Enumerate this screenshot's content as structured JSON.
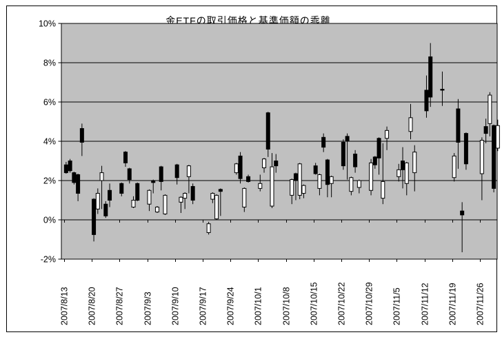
{
  "chart_data": {
    "type": "candlestick",
    "title": "金ETFの取引価格と基準価額の乖離",
    "ylabel": "",
    "xlabel": "",
    "ylim": [
      -2,
      10
    ],
    "y_tick_step": 2,
    "y_ticks": [
      10,
      8,
      6,
      4,
      2,
      0,
      -2
    ],
    "y_tick_labels": [
      "10%",
      "8%",
      "6%",
      "4%",
      "2%",
      "0%",
      "-2%"
    ],
    "x_tick_labels": [
      "2007/8/13",
      "2007/8/20",
      "2007/8/27",
      "2007/9/3",
      "2007/9/10",
      "2007/9/17",
      "2007/9/24",
      "2007/10/1",
      "2007/10/8",
      "2007/10/15",
      "2007/10/22",
      "2007/10/29",
      "2007/11/5",
      "2007/11/12",
      "2007/11/19",
      "2007/11/26"
    ],
    "grid": true,
    "legend": "none",
    "plot_bg_color": "#c0c0c0",
    "up_color": "#ffffff",
    "down_color": "#000000",
    "line_color": "#000000",
    "candles": [
      {
        "date": "2007/8/13",
        "o": 2.8,
        "h": 2.95,
        "l": 2.35,
        "c": 2.4
      },
      {
        "date": "2007/8/14",
        "o": 3.0,
        "h": 3.1,
        "l": 2.4,
        "c": 2.5
      },
      {
        "date": "2007/8/15",
        "o": 2.4,
        "h": 2.45,
        "l": 1.8,
        "c": 1.9
      },
      {
        "date": "2007/8/16",
        "o": 2.3,
        "h": 2.35,
        "l": 0.95,
        "c": 1.35
      },
      {
        "date": "2007/8/17",
        "o": 4.65,
        "h": 4.9,
        "l": 3.25,
        "c": 3.95
      },
      {
        "date": "2007/8/20",
        "o": 1.05,
        "h": 1.1,
        "l": -1.1,
        "c": -0.75
      },
      {
        "date": "2007/8/21",
        "o": 0.55,
        "h": 1.6,
        "l": 0.3,
        "c": 1.35
      },
      {
        "date": "2007/8/22",
        "o": 2.0,
        "h": 2.75,
        "l": 0.55,
        "c": 2.4
      },
      {
        "date": "2007/8/23",
        "o": 0.8,
        "h": 0.95,
        "l": 0.1,
        "c": 0.2
      },
      {
        "date": "2007/8/24",
        "o": 1.5,
        "h": 1.85,
        "l": 0.65,
        "c": 1.0
      },
      {
        "date": "2007/8/27",
        "o": 1.85,
        "h": 1.9,
        "l": 1.2,
        "c": 1.35
      },
      {
        "date": "2007/8/28",
        "o": 3.45,
        "h": 3.5,
        "l": 2.7,
        "c": 2.9
      },
      {
        "date": "2007/8/29",
        "o": 2.6,
        "h": 2.65,
        "l": 1.85,
        "c": 2.05
      },
      {
        "date": "2007/8/30",
        "o": 0.65,
        "h": 1.2,
        "l": 0.6,
        "c": 1.0
      },
      {
        "date": "2007/8/31",
        "o": 1.85,
        "h": 1.9,
        "l": 0.95,
        "c": 1.0
      },
      {
        "date": "2007/9/3",
        "o": 0.8,
        "h": 1.55,
        "l": 0.45,
        "c": 1.5
      },
      {
        "date": "2007/9/4",
        "o": 2.0,
        "h": 2.05,
        "l": 1.35,
        "c": 1.9
      },
      {
        "date": "2007/9/5",
        "o": 0.4,
        "h": 0.7,
        "l": 0.35,
        "c": 0.65
      },
      {
        "date": "2007/9/6",
        "o": 2.7,
        "h": 2.75,
        "l": 1.5,
        "c": 1.95
      },
      {
        "date": "2007/9/7",
        "o": 0.3,
        "h": 1.3,
        "l": 0.25,
        "c": 1.25
      },
      {
        "date": "2007/9/10",
        "o": 2.8,
        "h": 2.85,
        "l": 1.8,
        "c": 2.15
      },
      {
        "date": "2007/9/11",
        "o": 0.9,
        "h": 1.2,
        "l": 0.35,
        "c": 1.15
      },
      {
        "date": "2007/9/12",
        "o": 1.1,
        "h": 1.4,
        "l": 0.55,
        "c": 1.35
      },
      {
        "date": "2007/9/13",
        "o": 2.2,
        "h": 2.8,
        "l": 1.35,
        "c": 2.75
      },
      {
        "date": "2007/9/14",
        "o": 1.7,
        "h": 1.85,
        "l": 0.8,
        "c": 1.0
      },
      {
        "date": "2007/9/18",
        "o": -0.65,
        "h": -0.1,
        "l": -0.75,
        "c": -0.2
      },
      {
        "date": "2007/9/19",
        "o": 1.05,
        "h": 1.4,
        "l": 0.85,
        "c": 1.35
      },
      {
        "date": "2007/9/20",
        "o": 0.05,
        "h": 1.3,
        "l": 0.0,
        "c": 1.25
      },
      {
        "date": "2007/9/21",
        "o": 1.55,
        "h": 1.6,
        "l": 0.2,
        "c": 1.45
      },
      {
        "date": "2007/9/25",
        "o": 2.4,
        "h": 2.9,
        "l": 2.3,
        "c": 2.85
      },
      {
        "date": "2007/9/26",
        "o": 3.25,
        "h": 3.45,
        "l": 1.85,
        "c": 2.1
      },
      {
        "date": "2007/9/27",
        "o": 0.65,
        "h": 1.65,
        "l": 0.4,
        "c": 1.6
      },
      {
        "date": "2007/9/28",
        "o": 2.2,
        "h": 2.3,
        "l": 1.9,
        "c": 1.95
      },
      {
        "date": "2007/10/1",
        "o": 1.6,
        "h": 2.3,
        "l": 1.45,
        "c": 1.85
      },
      {
        "date": "2007/10/2",
        "o": 2.65,
        "h": 3.15,
        "l": 2.4,
        "c": 3.1
      },
      {
        "date": "2007/10/3",
        "o": 5.45,
        "h": 5.5,
        "l": 3.2,
        "c": 3.6
      },
      {
        "date": "2007/10/4",
        "o": 0.7,
        "h": 3.4,
        "l": 0.6,
        "c": 2.7
      },
      {
        "date": "2007/10/5",
        "o": 3.0,
        "h": 3.35,
        "l": 2.4,
        "c": 2.75
      },
      {
        "date": "2007/10/9",
        "o": 1.25,
        "h": 2.1,
        "l": 0.8,
        "c": 2.05
      },
      {
        "date": "2007/10/10",
        "o": 2.35,
        "h": 2.4,
        "l": 1.0,
        "c": 2.0
      },
      {
        "date": "2007/10/11",
        "o": 1.25,
        "h": 2.9,
        "l": 1.05,
        "c": 2.85
      },
      {
        "date": "2007/10/12",
        "o": 1.35,
        "h": 1.8,
        "l": 1.1,
        "c": 1.75
      },
      {
        "date": "2007/10/15",
        "o": 2.75,
        "h": 2.9,
        "l": 2.3,
        "c": 2.35
      },
      {
        "date": "2007/10/16",
        "o": 1.6,
        "h": 2.35,
        "l": 1.25,
        "c": 2.3
      },
      {
        "date": "2007/10/17",
        "o": 4.2,
        "h": 4.4,
        "l": 3.45,
        "c": 3.7
      },
      {
        "date": "2007/10/18",
        "o": 3.05,
        "h": 3.1,
        "l": 1.15,
        "c": 1.8
      },
      {
        "date": "2007/10/19",
        "o": 1.85,
        "h": 2.25,
        "l": 1.15,
        "c": 2.2
      },
      {
        "date": "2007/10/22",
        "o": 3.95,
        "h": 4.1,
        "l": 2.55,
        "c": 2.75
      },
      {
        "date": "2007/10/23",
        "o": 4.25,
        "h": 4.4,
        "l": 2.05,
        "c": 4.0
      },
      {
        "date": "2007/10/24",
        "o": 1.45,
        "h": 2.2,
        "l": 1.25,
        "c": 2.15
      },
      {
        "date": "2007/10/25",
        "o": 3.35,
        "h": 3.55,
        "l": 2.4,
        "c": 2.7
      },
      {
        "date": "2007/10/26",
        "o": 1.65,
        "h": 2.05,
        "l": 1.35,
        "c": 2.0
      },
      {
        "date": "2007/10/29",
        "o": 1.5,
        "h": 3.1,
        "l": 1.25,
        "c": 2.9
      },
      {
        "date": "2007/10/30",
        "o": 3.2,
        "h": 3.25,
        "l": 2.6,
        "c": 2.8
      },
      {
        "date": "2007/10/31",
        "o": 4.15,
        "h": 4.2,
        "l": 2.3,
        "c": 3.15
      },
      {
        "date": "2007/11/1",
        "o": 1.1,
        "h": 3.9,
        "l": 0.8,
        "c": 1.95
      },
      {
        "date": "2007/11/2",
        "o": 4.15,
        "h": 4.75,
        "l": 3.55,
        "c": 4.55
      },
      {
        "date": "2007/11/5",
        "o": 2.2,
        "h": 2.85,
        "l": 1.95,
        "c": 2.55
      },
      {
        "date": "2007/11/6",
        "o": 3.0,
        "h": 3.7,
        "l": 1.6,
        "c": 2.55
      },
      {
        "date": "2007/11/7",
        "o": 1.85,
        "h": 2.95,
        "l": 1.25,
        "c": 2.9
      },
      {
        "date": "2007/11/8",
        "o": 4.5,
        "h": 5.9,
        "l": 4.1,
        "c": 5.2
      },
      {
        "date": "2007/11/9",
        "o": 2.4,
        "h": 3.8,
        "l": 1.45,
        "c": 3.45
      },
      {
        "date": "2007/11/12",
        "o": 6.6,
        "h": 7.35,
        "l": 5.2,
        "c": 5.55
      },
      {
        "date": "2007/11/13",
        "o": 8.3,
        "h": 9.0,
        "l": 5.75,
        "c": 6.25
      },
      {
        "date": "2007/11/16",
        "o": 6.65,
        "h": 7.55,
        "l": 5.8,
        "c": 6.6
      },
      {
        "date": "2007/11/19",
        "o": 2.15,
        "h": 3.4,
        "l": 1.95,
        "c": 3.25
      },
      {
        "date": "2007/11/20",
        "o": 5.65,
        "h": 6.15,
        "l": 2.6,
        "c": 3.95
      },
      {
        "date": "2007/11/21",
        "o": 0.45,
        "h": 0.9,
        "l": -1.65,
        "c": 0.25
      },
      {
        "date": "2007/11/22",
        "o": 4.4,
        "h": 4.45,
        "l": 2.55,
        "c": 2.85
      },
      {
        "date": "2007/11/26",
        "o": 2.35,
        "h": 4.2,
        "l": 1.0,
        "c": 4.05
      },
      {
        "date": "2007/11/27",
        "o": 4.75,
        "h": 5.15,
        "l": 3.9,
        "c": 4.4
      },
      {
        "date": "2007/11/28",
        "o": 4.9,
        "h": 6.5,
        "l": 4.25,
        "c": 6.35
      },
      {
        "date": "2007/11/29",
        "o": 4.8,
        "h": 4.85,
        "l": 1.4,
        "c": 1.6
      },
      {
        "date": "2007/11/30",
        "o": 3.65,
        "h": 5.1,
        "l": 3.5,
        "c": 4.8
      }
    ]
  }
}
